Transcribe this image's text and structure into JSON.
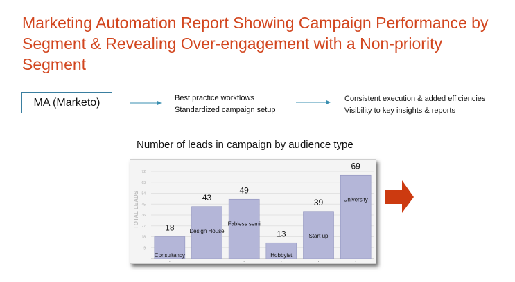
{
  "header": {
    "title": "Marketing Automation Report Showing Campaign Performance by Segment & Revealing Over-engagement with a Non-priority Segment"
  },
  "flow": {
    "box_label": "MA (Marketo)",
    "middle_lines": [
      "Best practice workflows",
      "Standardized campaign setup"
    ],
    "right_lines": [
      "Consistent execution & added efficiencies",
      "Visibility to key insights & reports"
    ]
  },
  "colors": {
    "title": "#d2461f",
    "bar": "#b4b6d8",
    "bar_border": "#8f92bd",
    "highlight_arrow": "#cc3a10",
    "flow_arrow": "#3a8fb0"
  },
  "icons": {
    "highlight": "right-pointing-arrow-icon"
  },
  "chart_data": {
    "type": "bar",
    "title": "Number of leads in campaign by audience type",
    "ylabel": "TOTAL LEADS",
    "categories": [
      "Consultancy",
      "Design House",
      "Fabless semi",
      "Hobbyist",
      "Start up",
      "University"
    ],
    "values": [
      18,
      43,
      49,
      13,
      39,
      69
    ],
    "data_labels": [
      "18",
      "43",
      "49",
      "13",
      "39",
      "69"
    ],
    "yticks": [
      "9",
      "18",
      "27",
      "36",
      "45",
      "54",
      "63",
      "72"
    ],
    "ylim": [
      0,
      72
    ],
    "grid": true,
    "highlighted_category": "University"
  }
}
